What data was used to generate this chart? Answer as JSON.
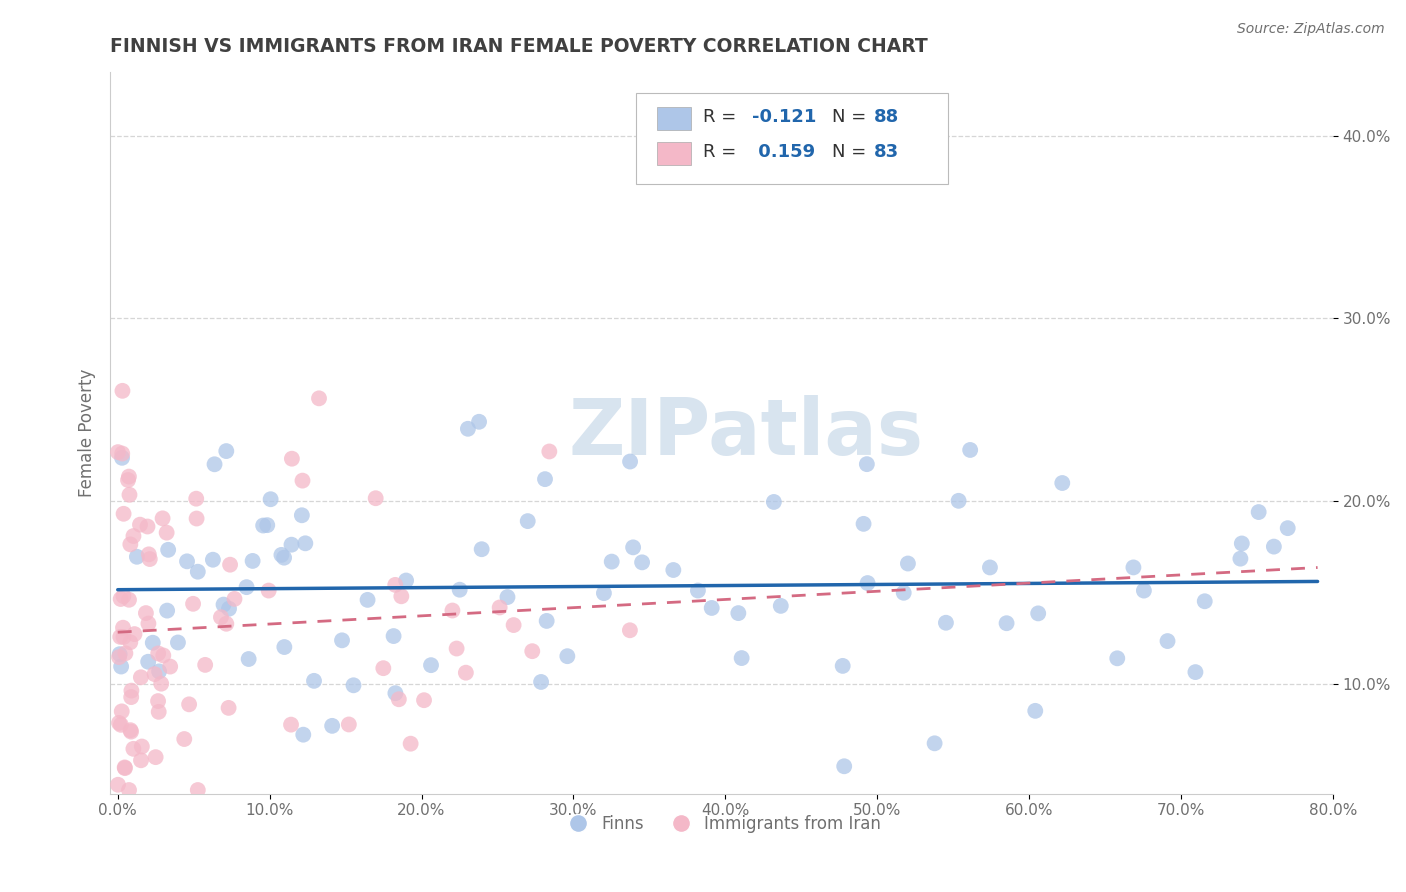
{
  "title": "FINNISH VS IMMIGRANTS FROM IRAN FEMALE POVERTY CORRELATION CHART",
  "source": "Source: ZipAtlas.com",
  "ylabel": "Female Poverty",
  "xlim": [
    -0.005,
    0.8
  ],
  "ylim": [
    0.04,
    0.435
  ],
  "xticks": [
    0.0,
    0.1,
    0.2,
    0.3,
    0.4,
    0.5,
    0.6,
    0.7,
    0.8
  ],
  "xticklabels": [
    "0.0%",
    "10.0%",
    "20.0%",
    "30.0%",
    "40.0%",
    "50.0%",
    "60.0%",
    "70.0%",
    "80.0%"
  ],
  "yticks": [
    0.1,
    0.2,
    0.3,
    0.4
  ],
  "yticklabels": [
    "10.0%",
    "20.0%",
    "30.0%",
    "40.0%"
  ],
  "legend_bottom": [
    "Finns",
    "Immigrants from Iran"
  ],
  "color_finn": "#aec6e8",
  "color_iran": "#f4b8c8",
  "color_finn_line": "#2166ac",
  "color_iran_line": "#d46a82",
  "watermark_color": "#d8e4ef",
  "finn_R": -0.121,
  "finn_N": 88,
  "iran_R": 0.159,
  "iran_N": 83,
  "background_color": "#ffffff",
  "grid_color": "#cccccc",
  "title_color": "#404040",
  "axis_label_color": "#707070",
  "legend_text_color": "#2166ac",
  "seed": 99
}
